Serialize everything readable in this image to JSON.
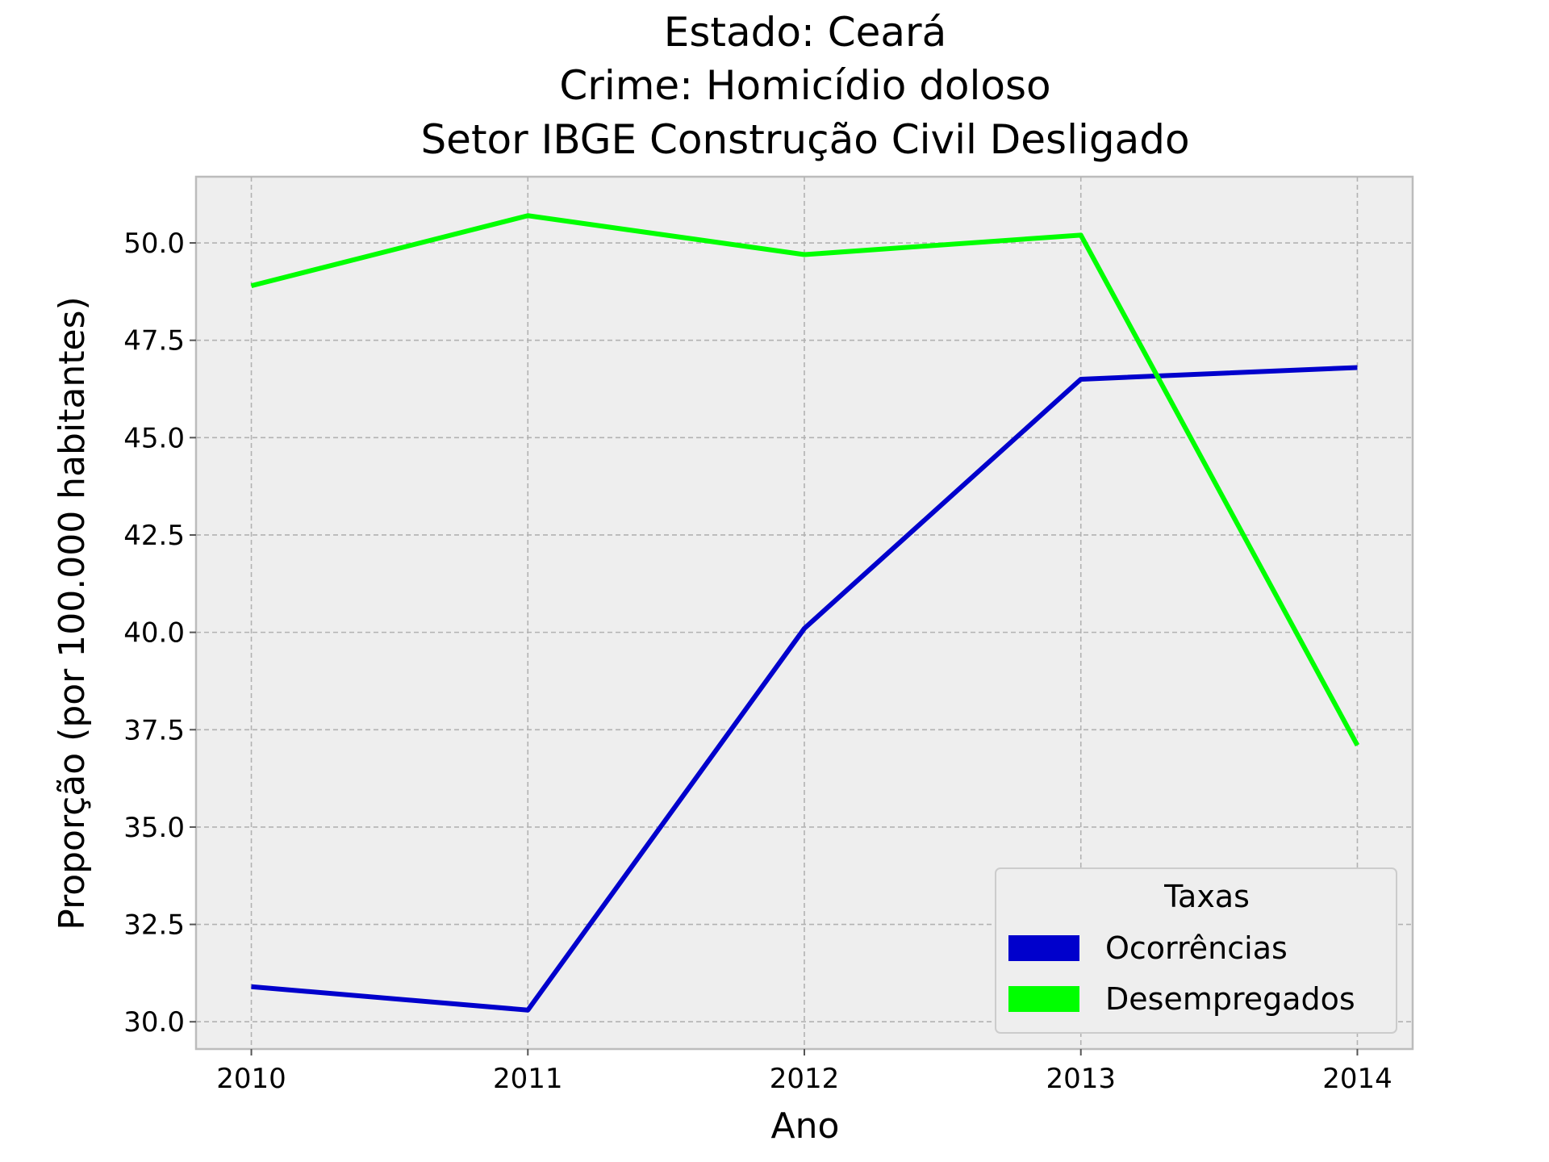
{
  "chart_data": {
    "type": "line",
    "title_lines": [
      "Estado: Ceará",
      "Crime: Homicídio doloso",
      "Setor IBGE  Construção Civil   Desligado"
    ],
    "xlabel": "Ano",
    "ylabel": "Proporção (por 100.000 habitantes)",
    "x": [
      2010,
      2011,
      2012,
      2013,
      2014
    ],
    "x_tick_labels": [
      "2010",
      "2011",
      "2012",
      "2013",
      "2014"
    ],
    "y_ticks": [
      30.0,
      32.5,
      35.0,
      37.5,
      40.0,
      42.5,
      45.0,
      47.5,
      50.0
    ],
    "y_tick_labels": [
      "30.0",
      "32.5",
      "35.0",
      "37.5",
      "40.0",
      "42.5",
      "45.0",
      "47.5",
      "50.0"
    ],
    "xlim": [
      2009.8,
      2014.2
    ],
    "ylim": [
      29.3,
      51.7
    ],
    "grid": true,
    "legend": {
      "title": "Taxas",
      "placement": "lower-right"
    },
    "series": [
      {
        "name": "Ocorrências",
        "color": "#0000cc",
        "values": [
          30.9,
          30.3,
          40.1,
          46.5,
          46.8
        ]
      },
      {
        "name": "Desempregados",
        "color": "#00ff00",
        "values": [
          48.9,
          50.7,
          49.7,
          50.2,
          37.1
        ]
      }
    ]
  }
}
